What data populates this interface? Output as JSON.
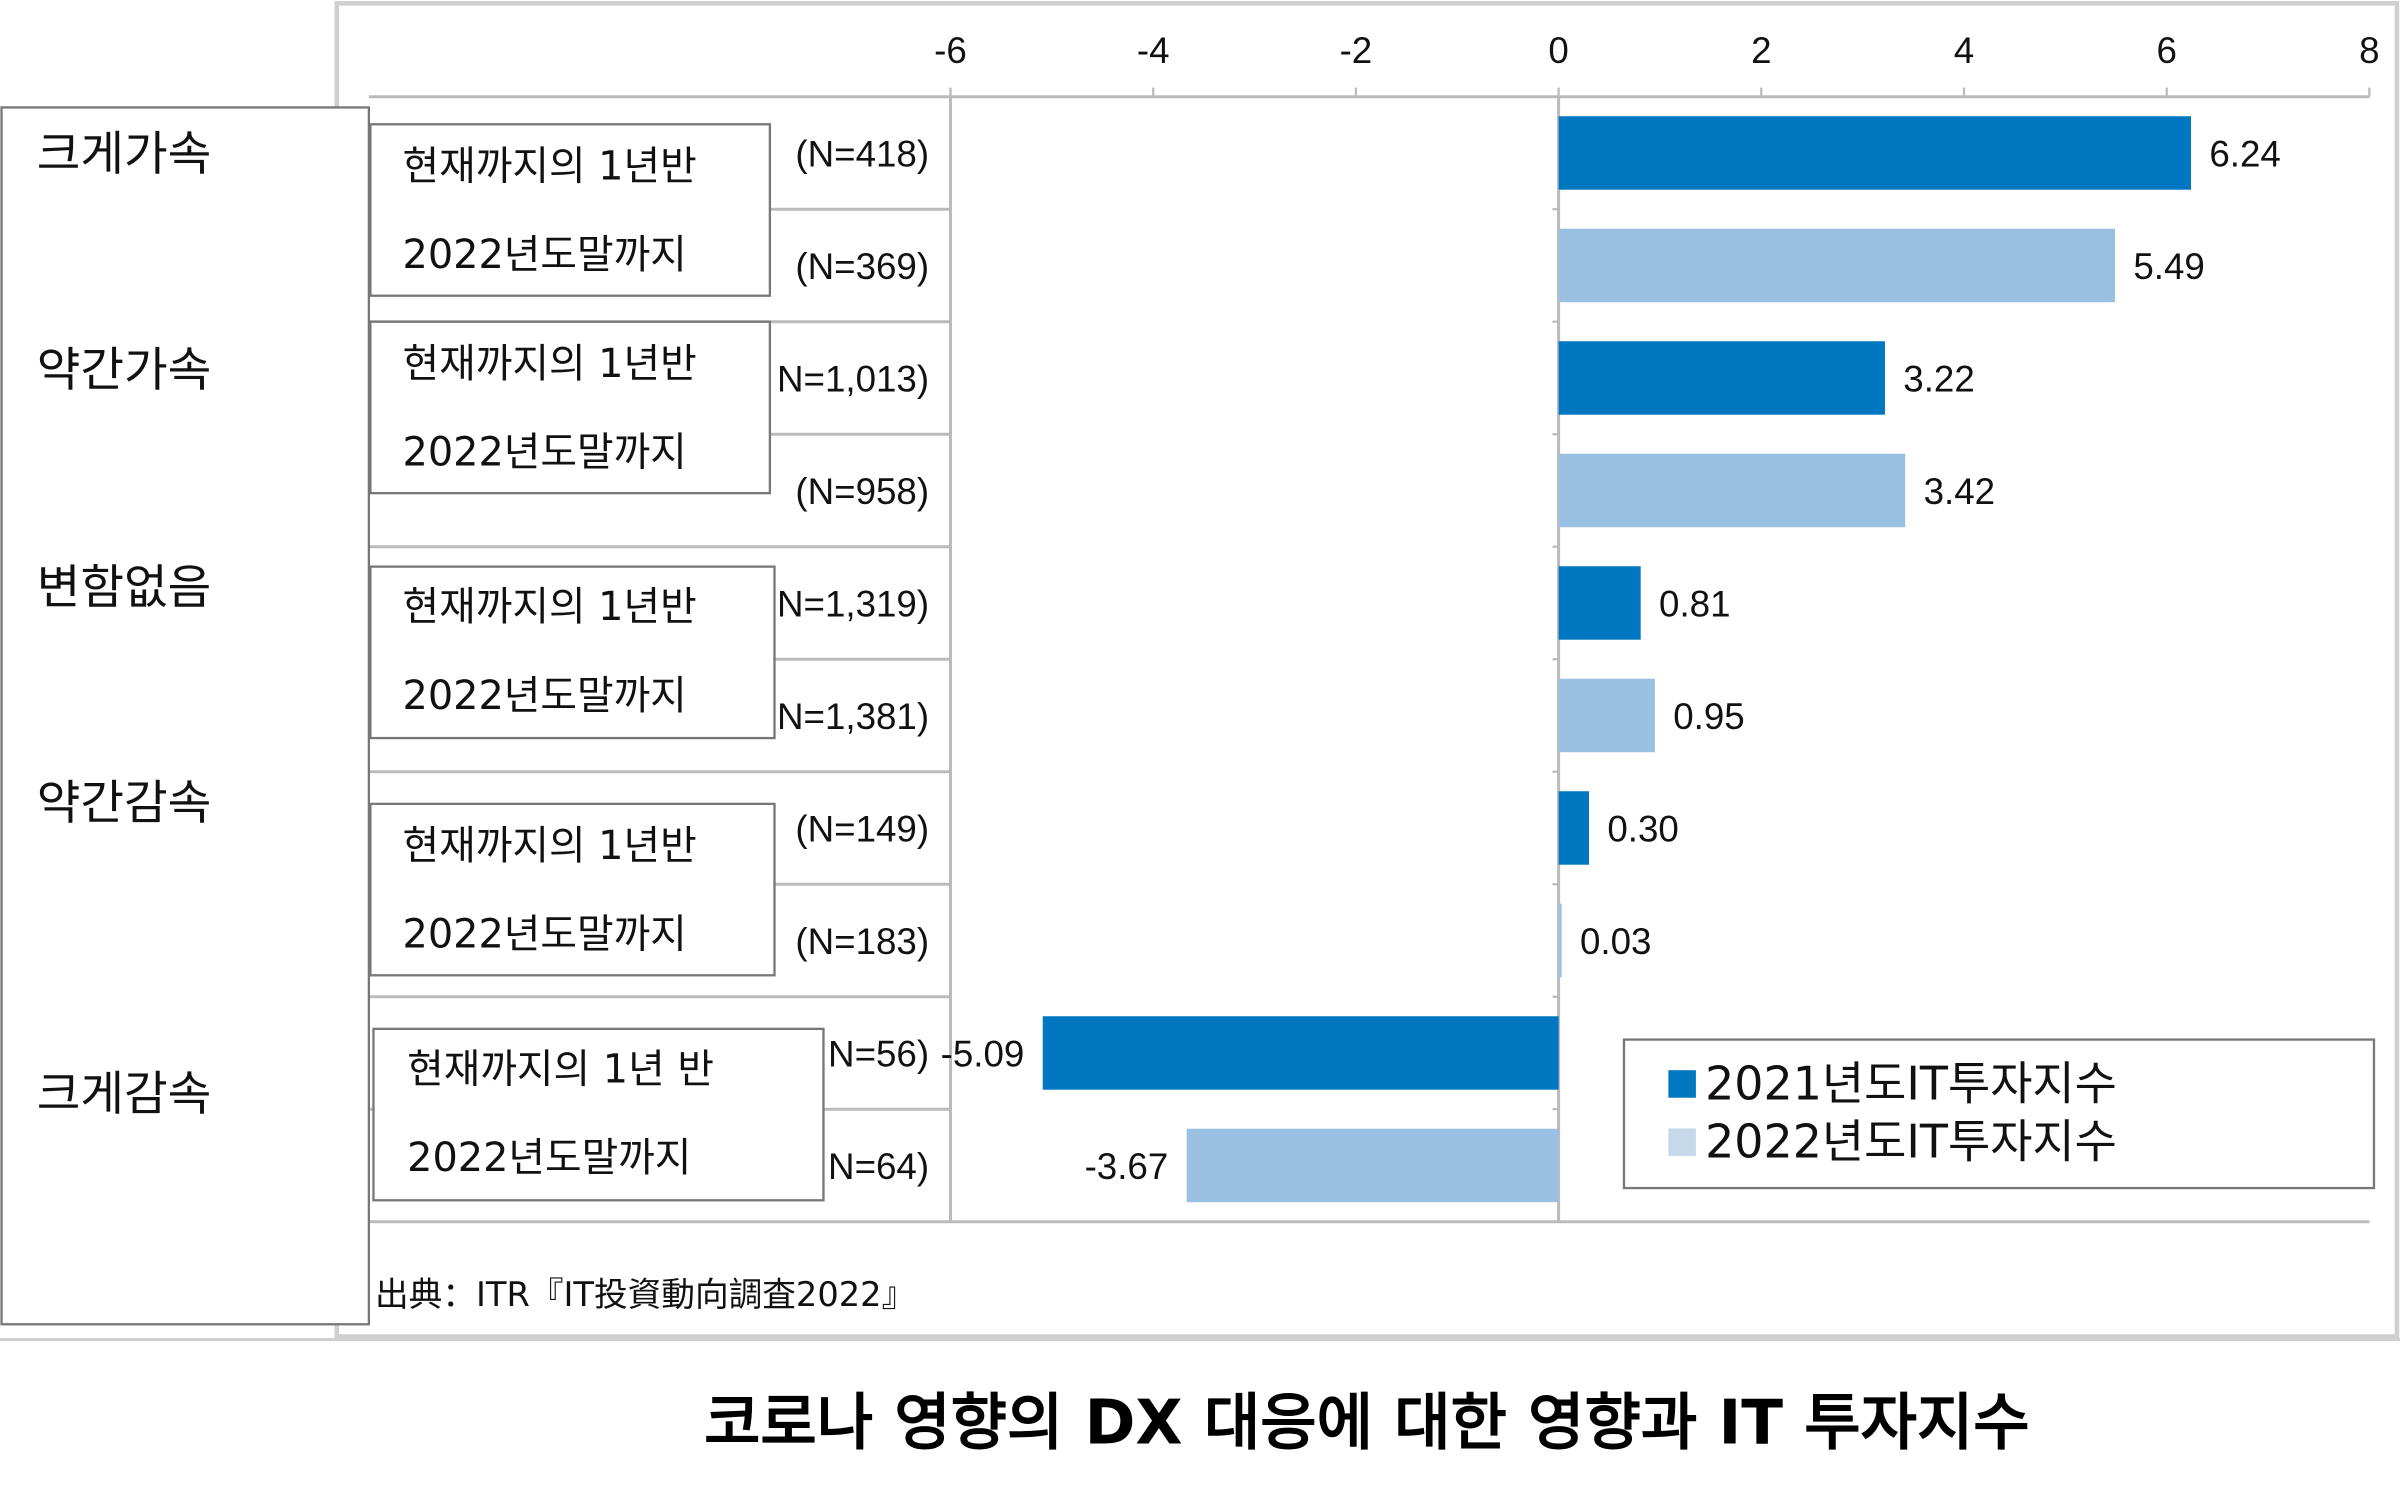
{
  "chart_data": {
    "type": "bar",
    "orientation": "horizontal",
    "title": "코로나 영향의 DX 대응에 대한 영향과 IT 투자지수",
    "source": "出典：ITR『IT投資動向調査2022』",
    "xlim": [
      -6,
      8
    ],
    "xticks": [
      "-6",
      "-4",
      "-2",
      "0",
      "2",
      "4",
      "6",
      "8"
    ],
    "groups": [
      "크게가속",
      "약간가속",
      "변함없음",
      "약간감속",
      "크게감속"
    ],
    "period_labels": [
      "현재까지의 1년반",
      "2022년도말까지"
    ],
    "period_label_last": "현재까지의 1년 반",
    "series": [
      {
        "name": "2021년도IT투자지수",
        "color": "#0077c0",
        "values": [
          6.24,
          3.22,
          0.81,
          0.3,
          -5.09
        ],
        "n": [
          "(N=418)",
          "N=1,013)",
          "N=1,319)",
          "(N=149)",
          "N=56)"
        ],
        "labels": [
          "6.24",
          "3.22",
          "0.81",
          "0.30",
          "-5.09"
        ]
      },
      {
        "name": "2022년도IT투자지수",
        "color": "#99c0e0",
        "values": [
          5.49,
          3.42,
          0.95,
          0.03,
          -3.67
        ],
        "n": [
          "(N=369)",
          "(N=958)",
          "N=1,381)",
          "(N=183)",
          "N=64)"
        ],
        "labels": [
          "5.49",
          "3.42",
          "0.95",
          "0.03",
          "-3.67"
        ]
      }
    ],
    "legend": "bottom-right",
    "grid": false
  },
  "legend_colors": {
    "s1": "#0077c0",
    "s2": "#c5d9ea"
  }
}
